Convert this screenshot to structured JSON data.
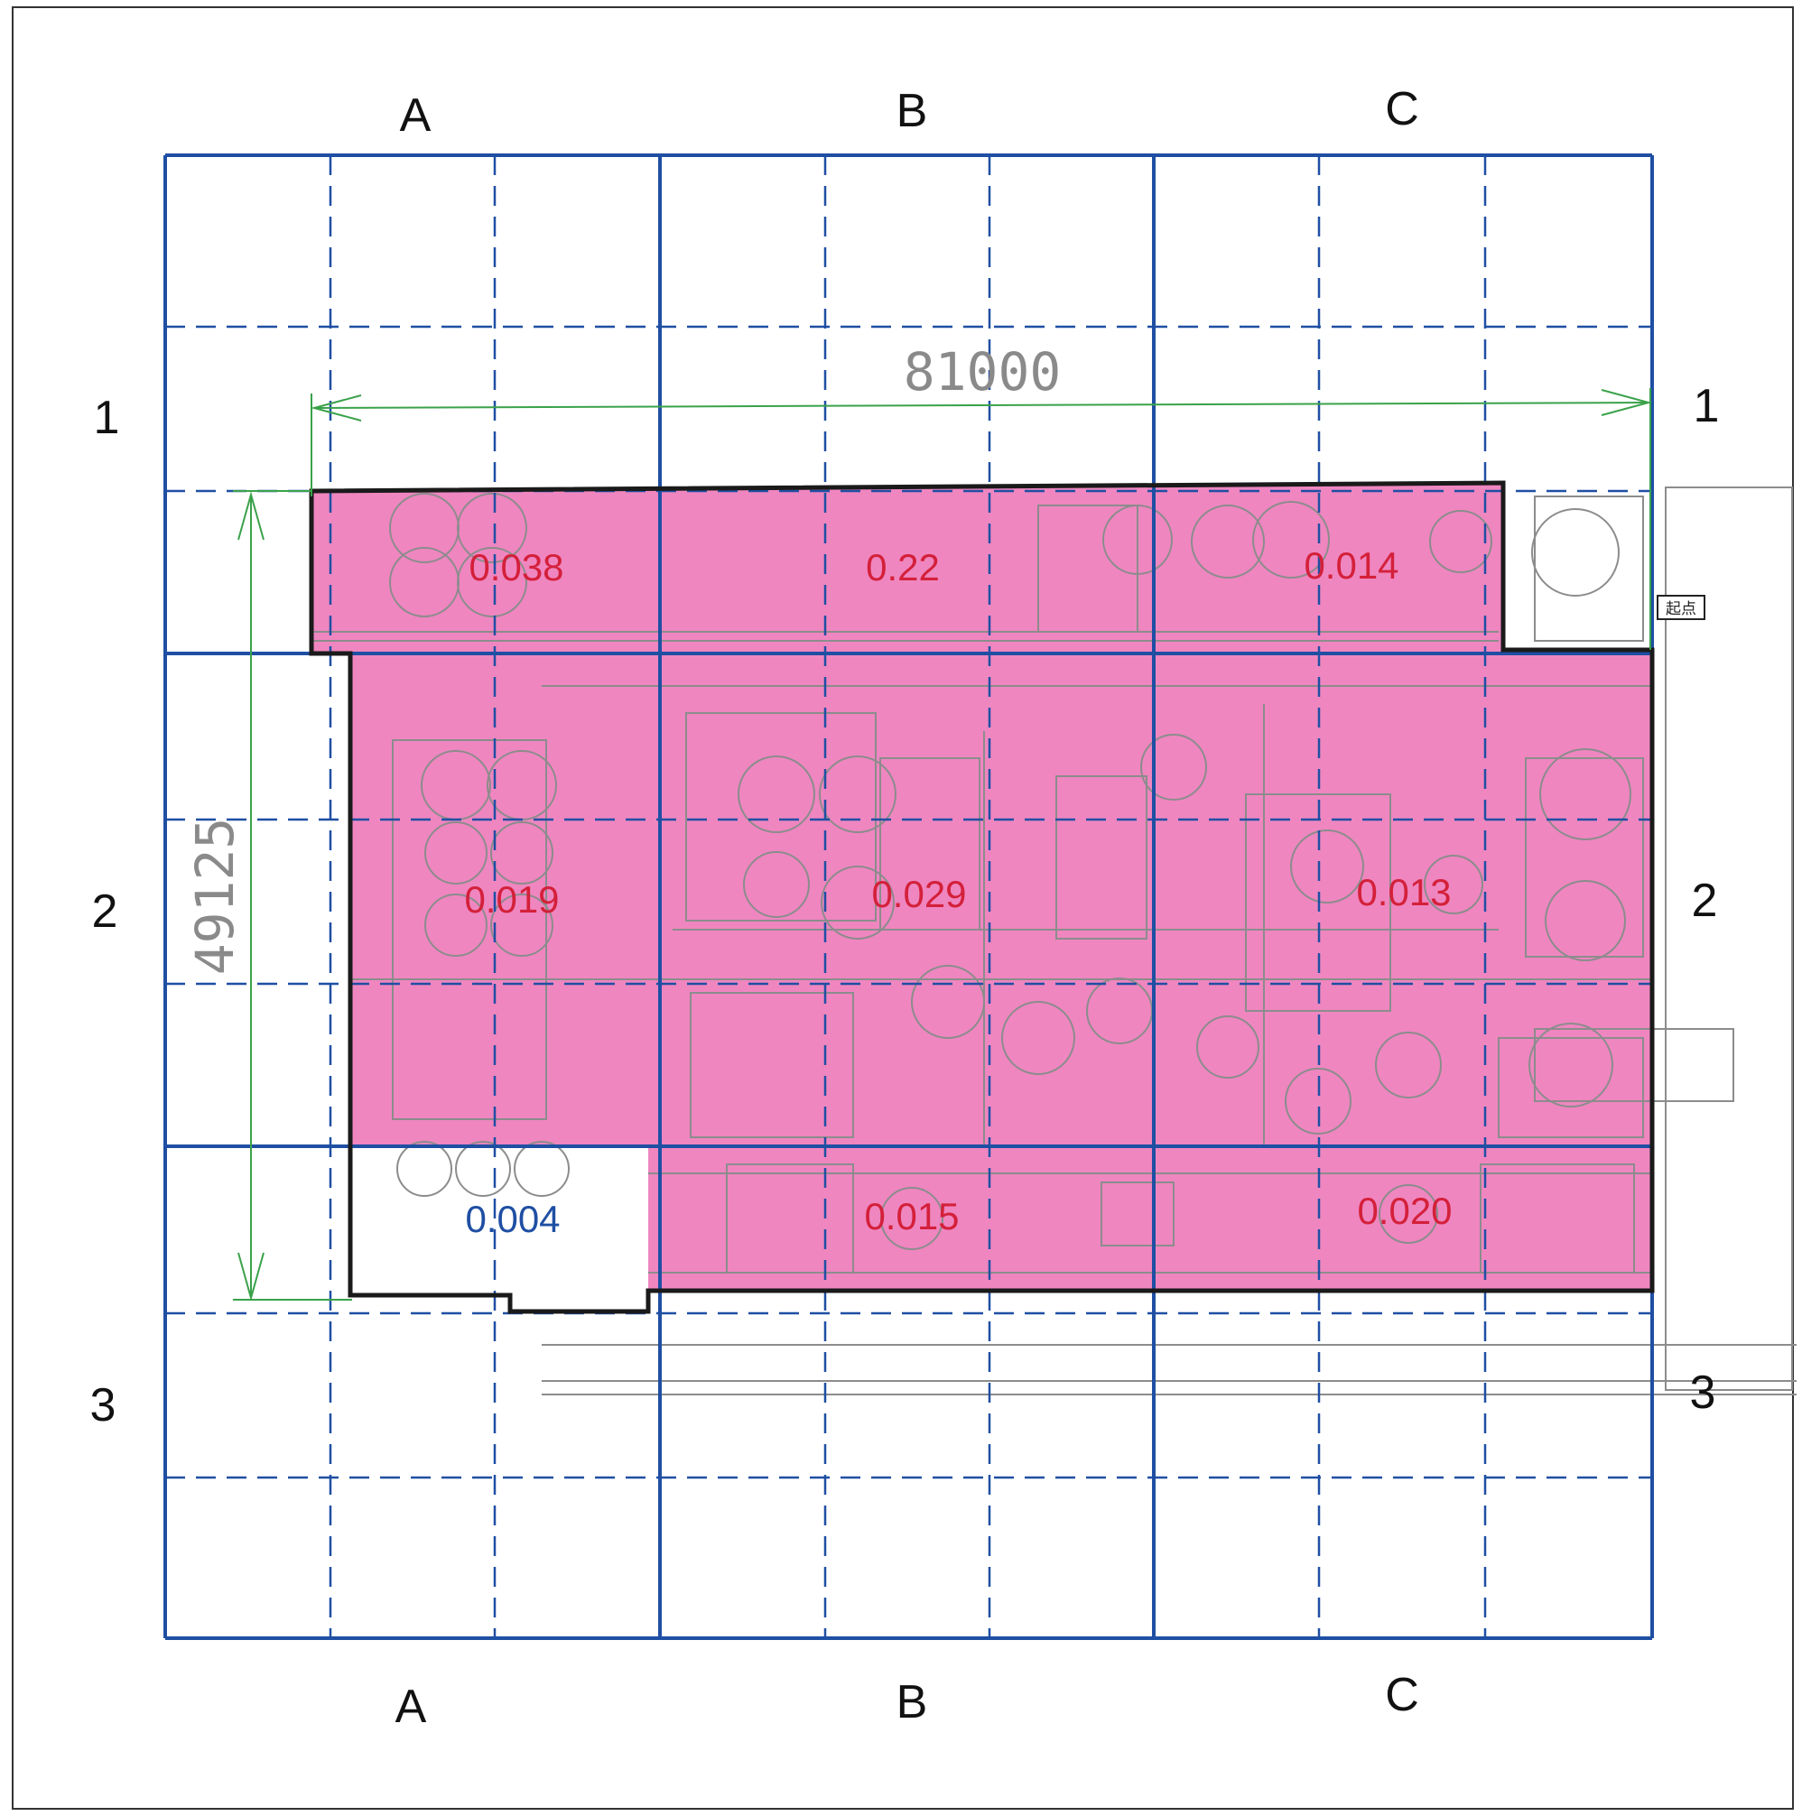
{
  "grid": {
    "columns": [
      "A",
      "B",
      "C"
    ],
    "rows": [
      "1",
      "2",
      "3"
    ]
  },
  "dimensions": {
    "width": "81000",
    "height": "49125"
  },
  "start_point_label": "起点",
  "cells": [
    {
      "col": "A",
      "row": "1",
      "value": "0.038",
      "highlighted": true
    },
    {
      "col": "B",
      "row": "1",
      "value": "0.22",
      "highlighted": true
    },
    {
      "col": "C",
      "row": "1",
      "value": "0.014",
      "highlighted": true
    },
    {
      "col": "A",
      "row": "2",
      "value": "0.019",
      "highlighted": true
    },
    {
      "col": "B",
      "row": "2",
      "value": "0.029",
      "highlighted": true
    },
    {
      "col": "C",
      "row": "2",
      "value": "0.013",
      "highlighted": true
    },
    {
      "col": "A",
      "row": "2-lower",
      "value": "0.004",
      "highlighted": false
    },
    {
      "col": "B",
      "row": "2-lower",
      "value": "0.015",
      "highlighted": true
    },
    {
      "col": "C",
      "row": "2-lower",
      "value": "0.020",
      "highlighted": true
    }
  ],
  "colors": {
    "grid_line": "#1f4fa3",
    "highlight_fill": "#ef86c0",
    "highlight_value_text": "#d4203a",
    "plain_value_text": "#1f4fa3",
    "dimension_line": "#3aa24a",
    "drawing_line": "#8c8c8c",
    "boundary": "#1a1a1a"
  }
}
